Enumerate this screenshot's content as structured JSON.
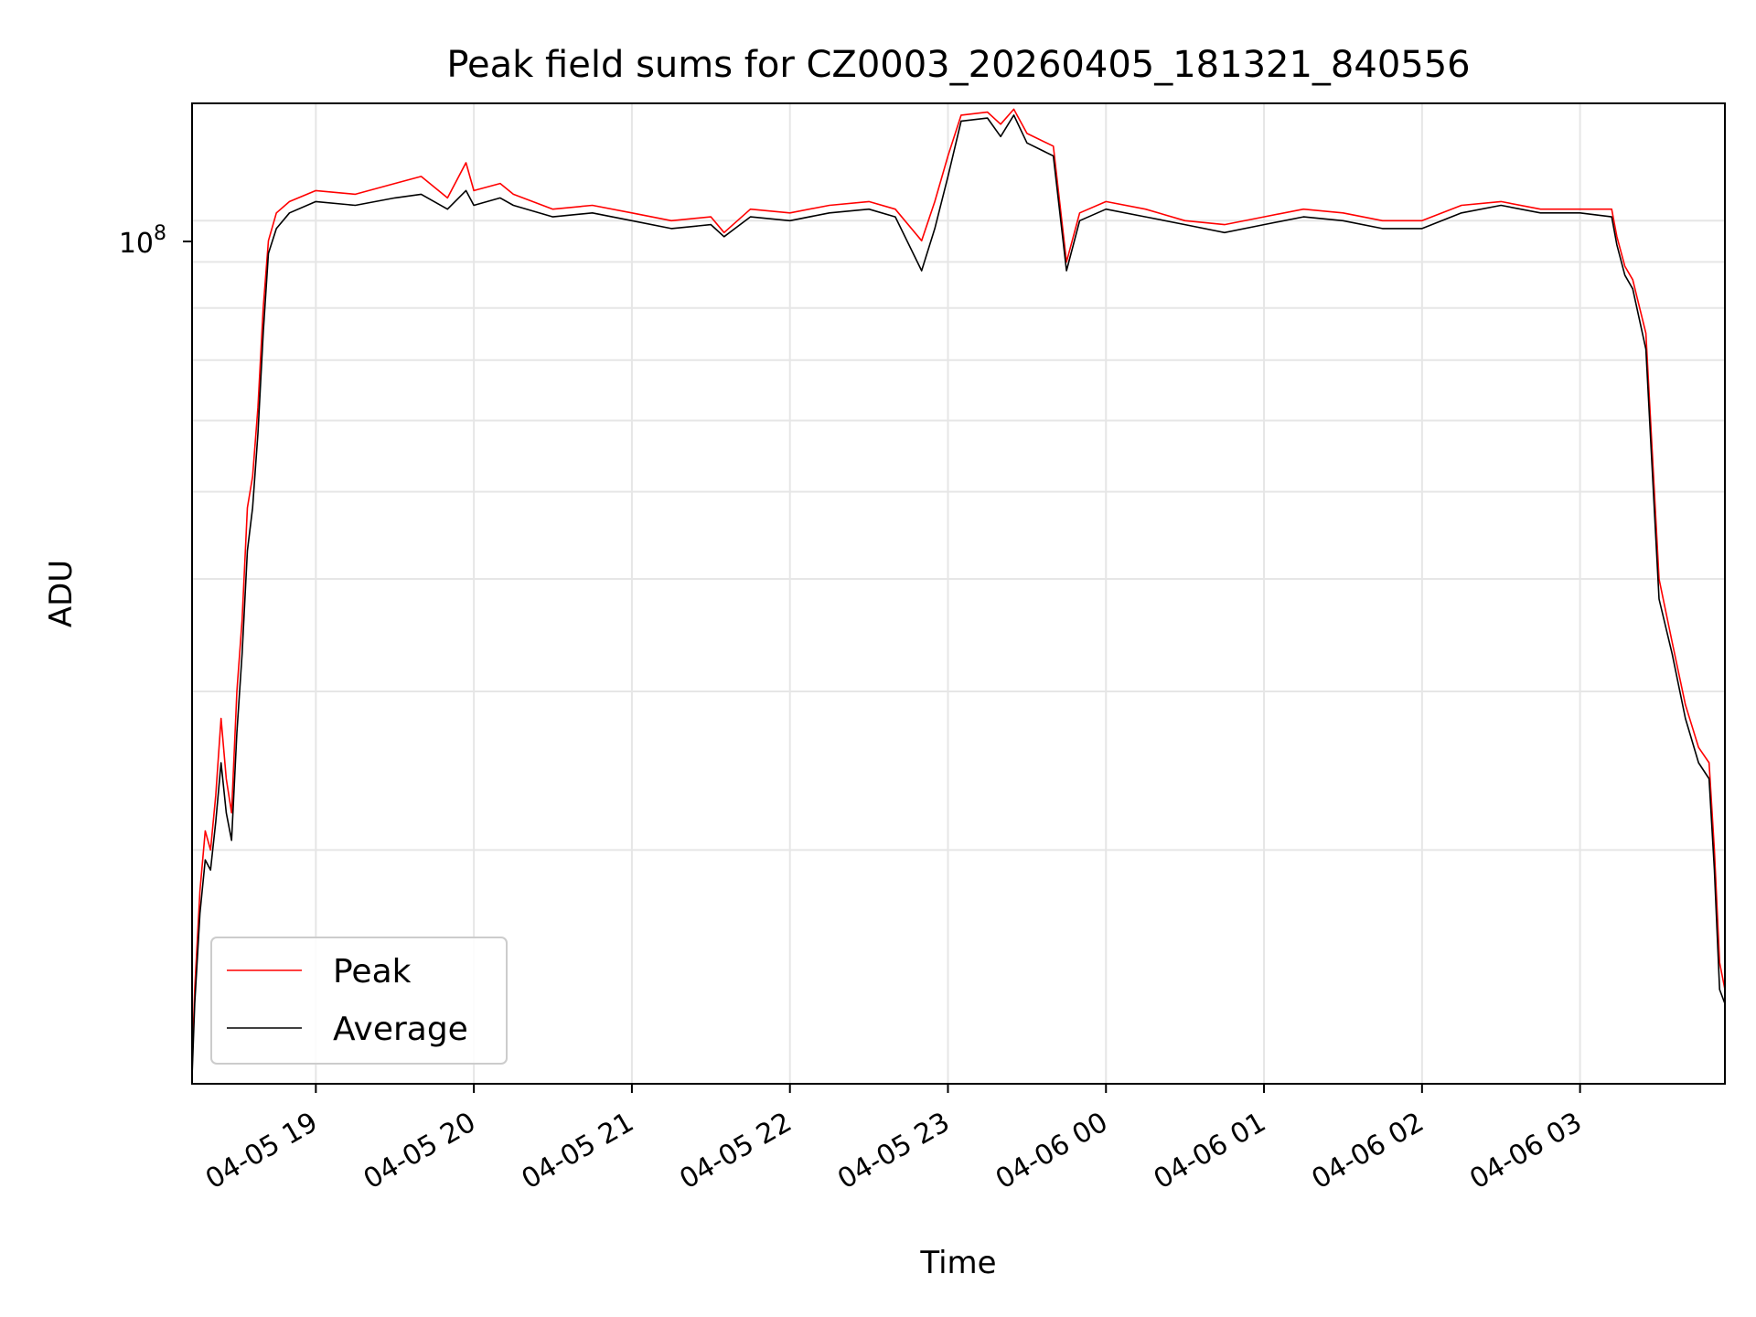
{
  "chart_data": {
    "type": "line",
    "title": "Peak field sums for CZ0003_20260405_181321_840556",
    "xlabel": "Time",
    "ylabel": "ADU",
    "yscale": "log",
    "grid": true,
    "legend_position": "lower-left",
    "x_tick_labels": [
      "04-05 19",
      "04-05 20",
      "04-05 21",
      "04-05 22",
      "04-05 23",
      "04-06 00",
      "04-06 01",
      "04-06 02",
      "04-06 03"
    ],
    "y_tick_label": "10^8",
    "y_tick_label_base": "10",
    "y_tick_label_exp": "8",
    "ylim": [
      11000000,
      135000000
    ],
    "xlim": [
      "2026-04-05 18:13",
      "2026-04-06 03:55"
    ],
    "series": [
      {
        "name": "Peak",
        "color": "#ff0000",
        "x": [
          "2026-04-05 18:13",
          "2026-04-05 18:14",
          "2026-04-05 18:16",
          "2026-04-05 18:18",
          "2026-04-05 18:20",
          "2026-04-05 18:22",
          "2026-04-05 18:24",
          "2026-04-05 18:26",
          "2026-04-05 18:28",
          "2026-04-05 18:30",
          "2026-04-05 18:32",
          "2026-04-05 18:34",
          "2026-04-05 18:36",
          "2026-04-05 18:38",
          "2026-04-05 18:40",
          "2026-04-05 18:42",
          "2026-04-05 18:45",
          "2026-04-05 18:50",
          "2026-04-05 19:00",
          "2026-04-05 19:15",
          "2026-04-05 19:30",
          "2026-04-05 19:40",
          "2026-04-05 19:50",
          "2026-04-05 19:57",
          "2026-04-05 20:00",
          "2026-04-05 20:10",
          "2026-04-05 20:15",
          "2026-04-05 20:30",
          "2026-04-05 20:45",
          "2026-04-05 21:00",
          "2026-04-05 21:15",
          "2026-04-05 21:30",
          "2026-04-05 21:35",
          "2026-04-05 21:45",
          "2026-04-05 22:00",
          "2026-04-05 22:15",
          "2026-04-05 22:30",
          "2026-04-05 22:40",
          "2026-04-05 22:50",
          "2026-04-05 22:55",
          "2026-04-05 23:00",
          "2026-04-05 23:05",
          "2026-04-05 23:15",
          "2026-04-05 23:20",
          "2026-04-05 23:25",
          "2026-04-05 23:30",
          "2026-04-05 23:40",
          "2026-04-05 23:45",
          "2026-04-05 23:50",
          "2026-04-06 00:00",
          "2026-04-06 00:15",
          "2026-04-06 00:30",
          "2026-04-06 00:45",
          "2026-04-06 01:00",
          "2026-04-06 01:15",
          "2026-04-06 01:30",
          "2026-04-06 01:45",
          "2026-04-06 02:00",
          "2026-04-06 02:15",
          "2026-04-06 02:30",
          "2026-04-06 02:45",
          "2026-04-06 03:00",
          "2026-04-06 03:12",
          "2026-04-06 03:14",
          "2026-04-06 03:17",
          "2026-04-06 03:20",
          "2026-04-06 03:25",
          "2026-04-06 03:30",
          "2026-04-06 03:35",
          "2026-04-06 03:40",
          "2026-04-06 03:45",
          "2026-04-06 03:49",
          "2026-04-06 03:51",
          "2026-04-06 03:53",
          "2026-04-06 03:55"
        ],
        "values": [
          11500000,
          14000000,
          18000000,
          21000000,
          20000000,
          23000000,
          28000000,
          24000000,
          22000000,
          30000000,
          36000000,
          48000000,
          52000000,
          62000000,
          80000000,
          95000000,
          102000000,
          105000000,
          108000000,
          107000000,
          110000000,
          112000000,
          106000000,
          116000000,
          108000000,
          110000000,
          107000000,
          103000000,
          104000000,
          102000000,
          100000000,
          101000000,
          97000000,
          103000000,
          102000000,
          104000000,
          105000000,
          103000000,
          95000000,
          105000000,
          118000000,
          131000000,
          132000000,
          128000000,
          133000000,
          125000000,
          121000000,
          90000000,
          102000000,
          105000000,
          103000000,
          100000000,
          99000000,
          101000000,
          103000000,
          102000000,
          100000000,
          100000000,
          104000000,
          105000000,
          103000000,
          103000000,
          103000000,
          96000000,
          89000000,
          86000000,
          75000000,
          40000000,
          34000000,
          29000000,
          26000000,
          25000000,
          20000000,
          15000000,
          14000000
        ]
      },
      {
        "name": "Average",
        "color": "#000000",
        "x": [
          "2026-04-05 18:13",
          "2026-04-05 18:14",
          "2026-04-05 18:16",
          "2026-04-05 18:18",
          "2026-04-05 18:20",
          "2026-04-05 18:22",
          "2026-04-05 18:24",
          "2026-04-05 18:26",
          "2026-04-05 18:28",
          "2026-04-05 18:30",
          "2026-04-05 18:32",
          "2026-04-05 18:34",
          "2026-04-05 18:36",
          "2026-04-05 18:38",
          "2026-04-05 18:40",
          "2026-04-05 18:42",
          "2026-04-05 18:45",
          "2026-04-05 18:50",
          "2026-04-05 19:00",
          "2026-04-05 19:15",
          "2026-04-05 19:30",
          "2026-04-05 19:40",
          "2026-04-05 19:50",
          "2026-04-05 19:57",
          "2026-04-05 20:00",
          "2026-04-05 20:10",
          "2026-04-05 20:15",
          "2026-04-05 20:30",
          "2026-04-05 20:45",
          "2026-04-05 21:00",
          "2026-04-05 21:15",
          "2026-04-05 21:30",
          "2026-04-05 21:35",
          "2026-04-05 21:45",
          "2026-04-05 22:00",
          "2026-04-05 22:15",
          "2026-04-05 22:30",
          "2026-04-05 22:40",
          "2026-04-05 22:50",
          "2026-04-05 22:55",
          "2026-04-05 23:00",
          "2026-04-05 23:05",
          "2026-04-05 23:15",
          "2026-04-05 23:20",
          "2026-04-05 23:25",
          "2026-04-05 23:30",
          "2026-04-05 23:40",
          "2026-04-05 23:45",
          "2026-04-05 23:50",
          "2026-04-06 00:00",
          "2026-04-06 00:15",
          "2026-04-06 00:30",
          "2026-04-06 00:45",
          "2026-04-06 01:00",
          "2026-04-06 01:15",
          "2026-04-06 01:30",
          "2026-04-06 01:45",
          "2026-04-06 02:00",
          "2026-04-06 02:15",
          "2026-04-06 02:30",
          "2026-04-06 02:45",
          "2026-04-06 03:00",
          "2026-04-06 03:12",
          "2026-04-06 03:14",
          "2026-04-06 03:17",
          "2026-04-06 03:20",
          "2026-04-06 03:25",
          "2026-04-06 03:30",
          "2026-04-06 03:35",
          "2026-04-06 03:40",
          "2026-04-06 03:45",
          "2026-04-06 03:49",
          "2026-04-06 03:51",
          "2026-04-06 03:53",
          "2026-04-06 03:55"
        ],
        "values": [
          11200000,
          13500000,
          17000000,
          19500000,
          19000000,
          21500000,
          25000000,
          22000000,
          20500000,
          27000000,
          33000000,
          43000000,
          48000000,
          58000000,
          75000000,
          92000000,
          98000000,
          102000000,
          105000000,
          104000000,
          106000000,
          107000000,
          103000000,
          108000000,
          104000000,
          106000000,
          104000000,
          101000000,
          102000000,
          100000000,
          98000000,
          99000000,
          96000000,
          101000000,
          100000000,
          102000000,
          103000000,
          101000000,
          88000000,
          98000000,
          112000000,
          129000000,
          130000000,
          124000000,
          131000000,
          122000000,
          118000000,
          88000000,
          100000000,
          103000000,
          101000000,
          99000000,
          97000000,
          99000000,
          101000000,
          100000000,
          98000000,
          98000000,
          102000000,
          104000000,
          102000000,
          102000000,
          101000000,
          94000000,
          87000000,
          84000000,
          72000000,
          38000000,
          33000000,
          28000000,
          25000000,
          24000000,
          19000000,
          14000000,
          13500000
        ]
      }
    ]
  }
}
